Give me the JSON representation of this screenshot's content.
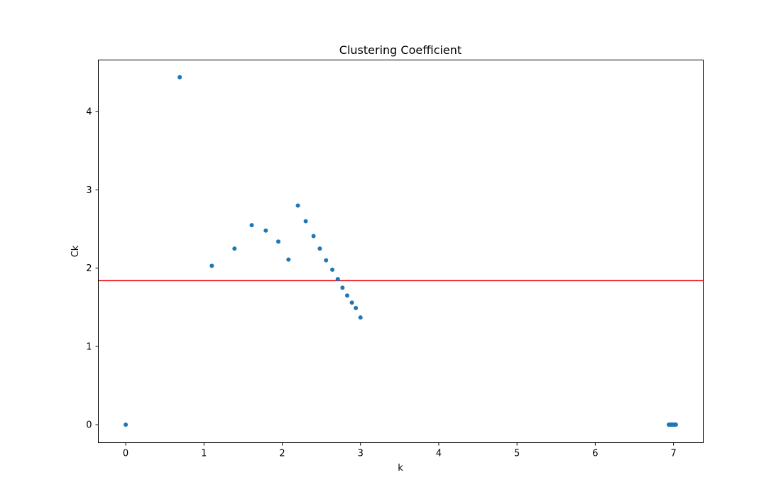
{
  "chart_data": {
    "type": "scatter",
    "title": "Clustering Coefficient",
    "xlabel": "k",
    "ylabel": "Ck",
    "xlim": [
      -0.35,
      7.38
    ],
    "ylim": [
      -0.23,
      4.66
    ],
    "xticks": [
      0,
      1,
      2,
      3,
      4,
      5,
      6,
      7
    ],
    "yticks": [
      0,
      1,
      2,
      3,
      4
    ],
    "grid": false,
    "marker_color": "#1f77b4",
    "reference_line": {
      "orientation": "horizontal",
      "y": 1.84,
      "color": "#e8000b"
    },
    "series": [
      {
        "points": [
          {
            "x": 0.0,
            "y": 0.0
          },
          {
            "x": 0.69,
            "y": 4.44
          },
          {
            "x": 1.1,
            "y": 2.03
          },
          {
            "x": 1.39,
            "y": 2.25
          },
          {
            "x": 1.61,
            "y": 2.55
          },
          {
            "x": 1.79,
            "y": 2.48
          },
          {
            "x": 1.95,
            "y": 2.34
          },
          {
            "x": 2.08,
            "y": 2.11
          },
          {
            "x": 2.2,
            "y": 2.8
          },
          {
            "x": 2.3,
            "y": 2.6
          },
          {
            "x": 2.4,
            "y": 2.41
          },
          {
            "x": 2.48,
            "y": 2.25
          },
          {
            "x": 2.56,
            "y": 2.1
          },
          {
            "x": 2.64,
            "y": 1.98
          },
          {
            "x": 2.71,
            "y": 1.86
          },
          {
            "x": 2.77,
            "y": 1.75
          },
          {
            "x": 2.83,
            "y": 1.65
          },
          {
            "x": 2.89,
            "y": 1.56
          },
          {
            "x": 2.94,
            "y": 1.49
          },
          {
            "x": 3.0,
            "y": 1.37
          },
          {
            "x": 6.94,
            "y": 0.0
          },
          {
            "x": 6.95,
            "y": 0.0
          },
          {
            "x": 6.96,
            "y": 0.0
          },
          {
            "x": 6.97,
            "y": 0.0
          },
          {
            "x": 6.98,
            "y": 0.0
          },
          {
            "x": 6.99,
            "y": 0.0
          },
          {
            "x": 7.0,
            "y": 0.0
          },
          {
            "x": 7.01,
            "y": 0.0
          },
          {
            "x": 7.02,
            "y": 0.0
          },
          {
            "x": 7.03,
            "y": 0.0
          }
        ]
      }
    ]
  }
}
